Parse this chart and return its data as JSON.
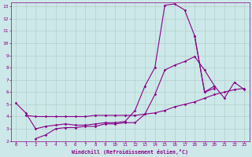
{
  "bg_color": "#cde8e8",
  "line_color": "#880088",
  "grid_color": "#b0d0cc",
  "xlabel": "Windchill (Refroidissement éolien,°C)",
  "xlim": [
    -0.5,
    23.5
  ],
  "ylim": [
    2,
    13.3
  ],
  "yticks": [
    2,
    3,
    4,
    5,
    6,
    7,
    8,
    9,
    10,
    11,
    12,
    13
  ],
  "xticks": [
    0,
    1,
    2,
    3,
    4,
    5,
    6,
    7,
    8,
    9,
    10,
    11,
    12,
    13,
    14,
    15,
    16,
    17,
    18,
    19,
    20,
    21,
    22,
    23
  ],
  "series": [
    {
      "x": [
        0,
        1,
        2,
        3,
        4,
        5,
        6,
        7,
        8,
        9,
        10,
        11,
        12,
        13,
        14,
        15,
        16,
        17,
        18,
        19,
        20
      ],
      "y": [
        5.1,
        4.3,
        3.0,
        3.2,
        3.3,
        3.4,
        3.3,
        3.3,
        3.4,
        3.5,
        3.5,
        3.6,
        4.5,
        6.5,
        8.0,
        13.1,
        13.2,
        12.7,
        10.6,
        6.0,
        6.3
      ]
    },
    {
      "x": [
        2,
        3,
        4,
        5,
        6,
        7,
        8,
        9,
        10,
        11,
        12,
        13,
        14,
        15,
        16,
        17,
        18,
        19,
        20
      ],
      "y": [
        2.2,
        2.5,
        3.0,
        3.1,
        3.1,
        3.2,
        3.2,
        3.4,
        3.4,
        3.5,
        3.5,
        4.2,
        5.8,
        7.8,
        8.2,
        8.5,
        8.9,
        7.8,
        6.5
      ]
    },
    {
      "x": [
        18,
        19,
        20,
        21,
        22,
        23
      ],
      "y": [
        10.6,
        6.0,
        6.5,
        5.5,
        6.8,
        6.2
      ]
    },
    {
      "x": [
        1,
        2,
        3,
        4,
        5,
        6,
        7,
        8,
        9,
        10,
        11,
        12,
        13,
        14,
        15,
        16,
        17,
        18,
        19,
        20,
        21,
        22,
        23
      ],
      "y": [
        4.1,
        4.0,
        4.0,
        4.0,
        4.0,
        4.0,
        4.0,
        4.1,
        4.1,
        4.1,
        4.1,
        4.1,
        4.2,
        4.3,
        4.5,
        4.8,
        5.0,
        5.2,
        5.5,
        5.8,
        6.0,
        6.2,
        6.3
      ]
    }
  ]
}
